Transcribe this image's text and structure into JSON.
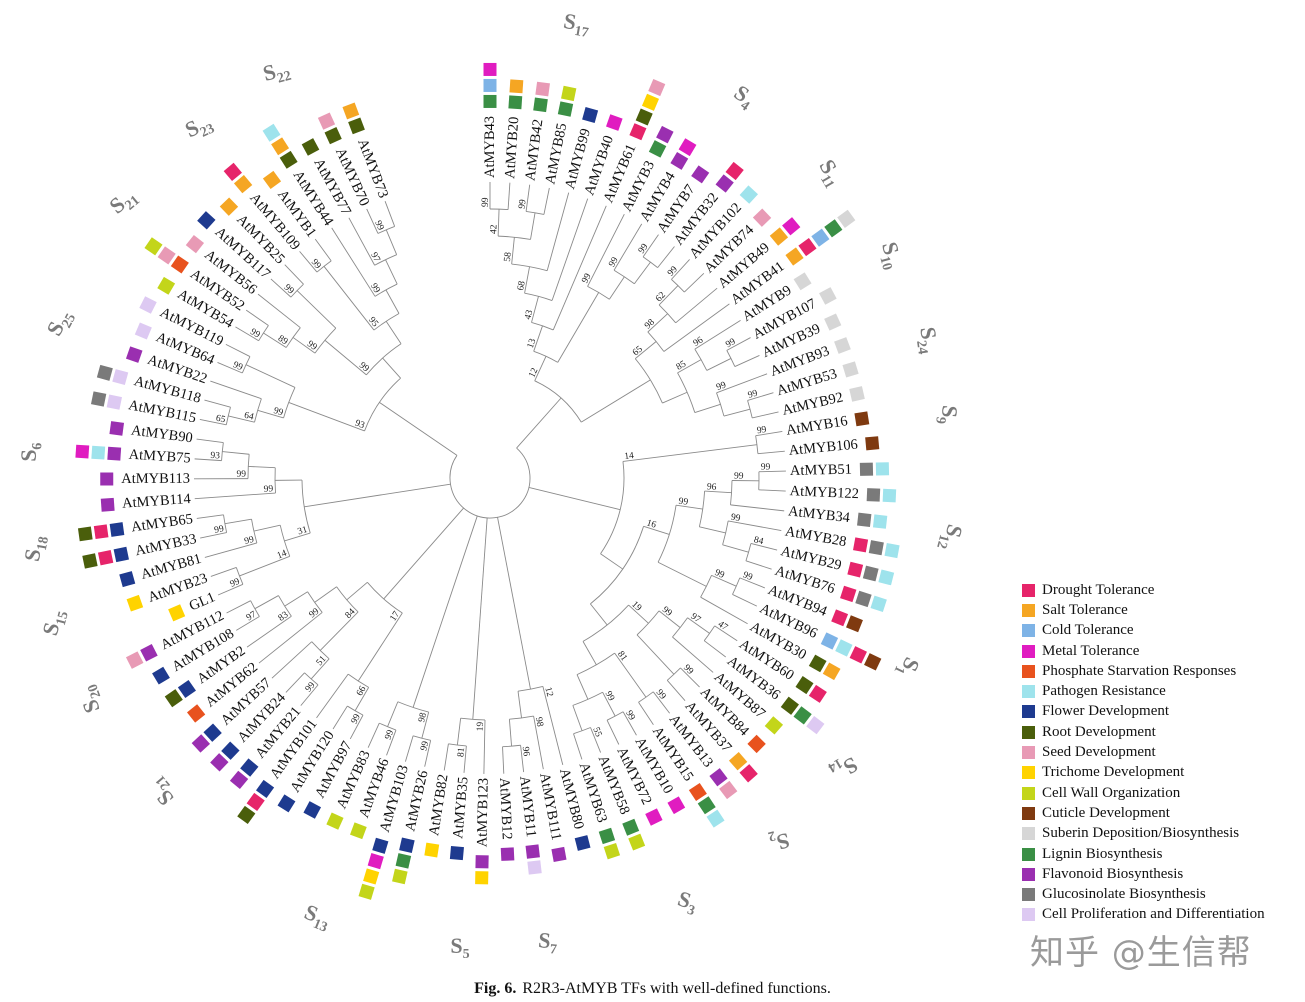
{
  "legend": {
    "items": [
      {
        "key": "DT",
        "label": "Drought Tolerance",
        "color": "#e6246a"
      },
      {
        "key": "ST",
        "label": "Salt Tolerance",
        "color": "#f5a623"
      },
      {
        "key": "CT",
        "label": "Cold Tolerance",
        "color": "#7eb3e6"
      },
      {
        "key": "MT",
        "label": "Metal Tolerance",
        "color": "#e01cc0"
      },
      {
        "key": "PS",
        "label": "Phosphate Starvation Responses",
        "color": "#e8521e"
      },
      {
        "key": "PR",
        "label": "Pathogen Resistance",
        "color": "#9ee3ec"
      },
      {
        "key": "FD",
        "label": "Flower Development",
        "color": "#1e3a8f"
      },
      {
        "key": "RD",
        "label": "Root Development",
        "color": "#4a5e0b"
      },
      {
        "key": "SD",
        "label": "Seed Development",
        "color": "#e89ab5"
      },
      {
        "key": "TD",
        "label": "Trichome Development",
        "color": "#ffd300"
      },
      {
        "key": "CW",
        "label": "Cell Wall Organization",
        "color": "#c3d51a"
      },
      {
        "key": "CD",
        "label": "Cuticle Development",
        "color": "#7f3a10"
      },
      {
        "key": "SU",
        "label": "Suberin Deposition/Biosynthesis",
        "color": "#d6d6d6"
      },
      {
        "key": "LB",
        "label": "Lignin Biosynthesis",
        "color": "#3a8f45"
      },
      {
        "key": "FB",
        "label": "Flavonoid Biosynthesis",
        "color": "#9a2fb0"
      },
      {
        "key": "GB",
        "label": "Glucosinolate Biosynthesis",
        "color": "#7a7a7a"
      },
      {
        "key": "CP",
        "label": "Cell Proliferation and Differentiation",
        "color": "#ddc9f2"
      }
    ]
  },
  "functions": {
    "AtMYB43": [
      "LB",
      "CT",
      "MT"
    ],
    "AtMYB20": [
      "LB",
      "ST"
    ],
    "AtMYB42": [
      "LB",
      "SD"
    ],
    "AtMYB85": [
      "LB",
      "CW"
    ],
    "AtMYB99": [
      "FD"
    ],
    "AtMYB40": [
      "MT"
    ],
    "AtMYB61": [
      "DT",
      "RD",
      "TD",
      "SD"
    ],
    "AtMYB3": [
      "LB",
      "FB"
    ],
    "AtMYB4": [
      "FB",
      "MT"
    ],
    "AtMYB7": [
      "FB"
    ],
    "AtMYB32": [
      "FB",
      "DT"
    ],
    "AtMYB102": [
      "PR"
    ],
    "AtMYB74": [
      "SD"
    ],
    "AtMYB49": [
      "ST",
      "MT"
    ],
    "AtMYB41": [
      "ST",
      "DT",
      "CT",
      "LB",
      "SU"
    ],
    "AtMYB9": [
      "SU"
    ],
    "AtMYB107": [
      "SU"
    ],
    "AtMYB39": [
      "SU"
    ],
    "AtMYB93": [
      "SU"
    ],
    "AtMYB53": [
      "SU"
    ],
    "AtMYB92": [
      "SU"
    ],
    "AtMYB16": [
      "CD"
    ],
    "AtMYB106": [
      "CD"
    ],
    "AtMYB51": [
      "GB",
      "PR"
    ],
    "AtMYB122": [
      "GB",
      "PR"
    ],
    "AtMYB34": [
      "GB",
      "PR"
    ],
    "AtMYB28": [
      "DT",
      "GB",
      "PR"
    ],
    "AtMYB29": [
      "DT",
      "GB",
      "PR"
    ],
    "AtMYB76": [
      "DT",
      "GB",
      "PR"
    ],
    "AtMYB94": [
      "DT",
      "CD"
    ],
    "AtMYB96": [
      "CT",
      "PR",
      "DT",
      "CD"
    ],
    "AtMYB30": [
      "RD",
      "ST"
    ],
    "AtMYB60": [
      "RD",
      "DT"
    ],
    "AtMYB36": [
      "RD",
      "LB",
      "CP"
    ],
    "AtMYB87": [
      "CW"
    ],
    "AtMYB84": [
      "PS"
    ],
    "AtMYB37": [
      "ST",
      "DT"
    ],
    "AtMYB13": [
      "FB",
      "SD"
    ],
    "AtMYB15": [
      "PS",
      "LB",
      "PR"
    ],
    "AtMYB10": [
      "MT"
    ],
    "AtMYB72": [
      "MT"
    ],
    "AtMYB58": [
      "LB",
      "CW"
    ],
    "AtMYB63": [
      "LB",
      "CW"
    ],
    "AtMYB80": [
      "FD"
    ],
    "AtMYB111": [
      "FB"
    ],
    "AtMYB11": [
      "FB",
      "CP"
    ],
    "AtMYB12": [
      "FB"
    ],
    "AtMYB123": [
      "FB",
      "TD"
    ],
    "AtMYB35": [
      "FD"
    ],
    "AtMYB82": [
      "TD"
    ],
    "AtMYB26": [
      "FD",
      "LB",
      "CW"
    ],
    "AtMYB103": [
      "FD",
      "MT",
      "TD",
      "CW"
    ],
    "AtMYB46": [
      "CW"
    ],
    "AtMYB83": [
      "CW"
    ],
    "AtMYB97": [
      "FD"
    ],
    "AtMYB120": [
      "FD"
    ],
    "AtMYB101": [
      "FD",
      "DT",
      "RD"
    ],
    "AtMYB21": [
      "FD",
      "FB"
    ],
    "AtMYB24": [
      "FD",
      "FB"
    ],
    "AtMYB57": [
      "FD",
      "FB"
    ],
    "AtMYB62": [
      "PS"
    ],
    "AtMYB2": [
      "FD",
      "RD"
    ],
    "AtMYB108": [
      "FD"
    ],
    "AtMYB112": [
      "FB",
      "SD"
    ],
    "GL1": [
      "TD"
    ],
    "AtMYB23": [
      "TD"
    ],
    "AtMYB81": [
      "FD"
    ],
    "AtMYB33": [
      "FD",
      "DT",
      "RD"
    ],
    "AtMYB65": [
      "FD",
      "DT",
      "RD"
    ],
    "AtMYB114": [
      "FB"
    ],
    "AtMYB113": [
      "FB"
    ],
    "AtMYB75": [
      "FB",
      "PR",
      "MT"
    ],
    "AtMYB90": [
      "FB"
    ],
    "AtMYB115": [
      "CP",
      "GB"
    ],
    "AtMYB118": [
      "CP",
      "GB"
    ],
    "AtMYB22": [
      "FB"
    ],
    "AtMYB64": [
      "CP"
    ],
    "AtMYB119": [
      "CP"
    ],
    "AtMYB54": [
      "CW"
    ],
    "AtMYB52": [
      "PS",
      "SD",
      "CW"
    ],
    "AtMYB56": [
      "SD"
    ],
    "AtMYB117": [
      "FD"
    ],
    "AtMYB25": [
      "ST"
    ],
    "AtMYB109": [
      "ST",
      "DT"
    ],
    "AtMYB1": [
      "ST"
    ],
    "AtMYB44": [
      "RD",
      "ST",
      "PR"
    ],
    "AtMYB77": [
      "RD"
    ],
    "AtMYB70": [
      "RD",
      "SD"
    ],
    "AtMYB73": [
      "RD",
      "ST"
    ]
  },
  "tree": {
    "c": [
      {
        "b": 12,
        "c": [
          {
            "b": 13,
            "c": [
              {
                "b": 43,
                "c": [
                  {
                    "b": 68,
                    "c": [
                      {
                        "b": 58,
                        "c": [
                          {
                            "b": 42,
                            "c": [
                              {
                                "b": 99,
                                "c": [
                                  "AtMYB43",
                                  "AtMYB20"
                                ]
                              },
                              {
                                "b": 99,
                                "c": [
                                  "AtMYB42",
                                  "AtMYB85"
                                ]
                              }
                            ]
                          },
                          "AtMYB99"
                        ]
                      },
                      "AtMYB40"
                    ]
                  },
                  "AtMYB61"
                ]
              },
              {
                "b": 99,
                "c": [
                  "AtMYB3",
                  {
                    "b": 99,
                    "c": [
                      "AtMYB4",
                      {
                        "b": 99,
                        "c": [
                          "AtMYB7",
                          "AtMYB32"
                        ]
                      }
                    ]
                  }
                ]
              }
            ]
          },
          {
            "b": 65,
            "c": [
              {
                "b": 98,
                "c": [
                  {
                    "b": 62,
                    "c": [
                      {
                        "b": 99,
                        "c": [
                          "AtMYB102",
                          "AtMYB74"
                        ]
                      },
                      "AtMYB49"
                    ]
                  },
                  "AtMYB41"
                ]
              },
              {
                "b": 85,
                "c": [
                  {
                    "b": 96,
                    "c": [
                      "AtMYB9",
                      {
                        "b": 99,
                        "c": [
                          "AtMYB107",
                          "AtMYB39"
                        ]
                      }
                    ]
                  },
                  {
                    "b": 99,
                    "c": [
                      "AtMYB93",
                      {
                        "b": 99,
                        "c": [
                          "AtMYB53",
                          "AtMYB92"
                        ]
                      }
                    ]
                  }
                ]
              }
            ]
          }
        ]
      },
      {
        "b": 14,
        "c": [
          {
            "b": 99,
            "c": [
              "AtMYB16",
              "AtMYB106"
            ]
          },
          {
            "b": 16,
            "c": [
              {
                "b": 99,
                "c": [
                  {
                    "b": 96,
                    "c": [
                      {
                        "b": 99,
                        "c": [
                          {
                            "b": 99,
                            "c": [
                              "AtMYB51",
                              "AtMYB122"
                            ]
                          },
                          "AtMYB34"
                        ]
                      },
                      {
                        "b": 99,
                        "c": [
                          "AtMYB28",
                          {
                            "b": 84,
                            "c": [
                              "AtMYB29",
                              "AtMYB76"
                            ]
                          }
                        ]
                      }
                    ]
                  },
                  {
                    "b": 99,
                    "c": [
                      {
                        "b": 99,
                        "c": [
                          "AtMYB94",
                          "AtMYB96"
                        ]
                      },
                      "AtMYB30"
                    ]
                  }
                ]
              },
              {
                "b": 19,
                "c": [
                  {
                    "b": 99,
                    "c": [
                      {
                        "b": 97,
                        "c": [
                          {
                            "b": 47,
                            "c": [
                              "AtMYB60",
                              "AtMYB36"
                            ]
                          },
                          "AtMYB87"
                        ]
                      },
                      {
                        "b": 99,
                        "c": [
                          "AtMYB84",
                          "AtMYB37"
                        ]
                      }
                    ]
                  },
                  {
                    "b": 81,
                    "c": [
                      {
                        "b": 99,
                        "c": [
                          "AtMYB13",
                          "AtMYB15"
                        ]
                      },
                      {
                        "b": 99,
                        "c": [
                          {
                            "b": 99,
                            "c": [
                              "AtMYB10",
                              "AtMYB72"
                            ]
                          },
                          {
                            "b": 55,
                            "c": [
                              "AtMYB58",
                              "AtMYB63"
                            ]
                          }
                        ]
                      }
                    ]
                  }
                ]
              }
            ]
          }
        ]
      },
      {
        "b": 12,
        "c": [
          "AtMYB80",
          {
            "b": 98,
            "c": [
              "AtMYB111",
              {
                "b": 96,
                "c": [
                  "AtMYB11",
                  "AtMYB12"
                ]
              }
            ]
          }
        ]
      },
      {
        "b": 19,
        "c": [
          "AtMYB123",
          {
            "b": 81,
            "c": [
              "AtMYB35",
              "AtMYB82"
            ]
          }
        ]
      },
      {
        "b": 98,
        "c": [
          {
            "b": 99,
            "c": [
              "AtMYB26",
              "AtMYB103"
            ]
          },
          {
            "b": 99,
            "c": [
              "AtMYB46",
              "AtMYB83"
            ]
          }
        ]
      },
      {
        "b": 17,
        "c": [
          {
            "b": 66,
            "c": [
              {
                "b": 99,
                "c": [
                  "AtMYB97",
                  "AtMYB120"
                ]
              },
              "AtMYB101"
            ]
          },
          {
            "b": 84,
            "c": [
              {
                "b": 51,
                "c": [
                  {
                    "b": 99,
                    "c": [
                      "AtMYB21",
                      "AtMYB24"
                    ]
                  },
                  "AtMYB57"
                ]
              },
              {
                "b": 99,
                "c": [
                  "AtMYB62",
                  {
                    "b": 83,
                    "c": [
                      "AtMYB2",
                      {
                        "b": 97,
                        "c": [
                          "AtMYB108",
                          "AtMYB112"
                        ]
                      }
                    ]
                  }
                ]
              }
            ]
          }
        ]
      },
      {
        "b": 31,
        "c": [
          {
            "b": 14,
            "c": [
              {
                "b": 99,
                "c": [
                  "GL1",
                  "AtMYB23"
                ]
              },
              {
                "b": 99,
                "c": [
                  "AtMYB81",
                  {
                    "b": 99,
                    "c": [
                      "AtMYB33",
                      "AtMYB65"
                    ]
                  }
                ]
              }
            ]
          },
          {
            "b": 99,
            "c": [
              "AtMYB114",
              {
                "b": 99,
                "c": [
                  "AtMYB113",
                  {
                    "b": 93,
                    "c": [
                      "AtMYB75",
                      "AtMYB90"
                    ]
                  }
                ]
              }
            ]
          }
        ]
      },
      {
        "b": 93,
        "c": [
          {
            "b": 99,
            "c": [
              {
                "b": 64,
                "c": [
                  {
                    "b": 65,
                    "c": [
                      "AtMYB115",
                      "AtMYB118"
                    ]
                  },
                  "AtMYB22"
                ]
              },
              {
                "b": 99,
                "c": [
                  "AtMYB64",
                  "AtMYB119"
                ]
              }
            ]
          },
          {
            "b": 99,
            "c": [
              {
                "b": 99,
                "c": [
                  {
                    "b": 89,
                    "c": [
                      {
                        "b": 99,
                        "c": [
                          "AtMYB54",
                          "AtMYB52"
                        ]
                      },
                      "AtMYB56"
                    ]
                  },
                  {
                    "b": 99,
                    "c": [
                      "AtMYB117",
                      "AtMYB25"
                    ]
                  }
                ]
              },
              {
                "b": 95,
                "c": [
                  {
                    "b": 99,
                    "c": [
                      "AtMYB109",
                      "AtMYB1"
                    ]
                  },
                  {
                    "b": 99,
                    "c": [
                      "AtMYB44",
                      {
                        "b": 97,
                        "c": [
                          "AtMYB77",
                          {
                            "b": 99,
                            "c": [
                              "AtMYB70",
                              "AtMYB73"
                            ]
                          }
                        ]
                      }
                    ]
                  }
                ]
              }
            ]
          }
        ]
      }
    ]
  },
  "subfamilies": [
    "17",
    "4",
    "11",
    "10",
    "24",
    "9",
    "12",
    "1",
    "14",
    "2",
    "3",
    "7",
    "5",
    "13",
    "21",
    "20",
    "15",
    "18",
    "6",
    "25",
    "21",
    "23",
    "22"
  ],
  "subfamily_prefix": "S",
  "caption": {
    "label": "Fig. 6.",
    "text": "R2R3-AtMYB TFs with well-defined functions."
  },
  "watermark": "知乎 @生信帮"
}
